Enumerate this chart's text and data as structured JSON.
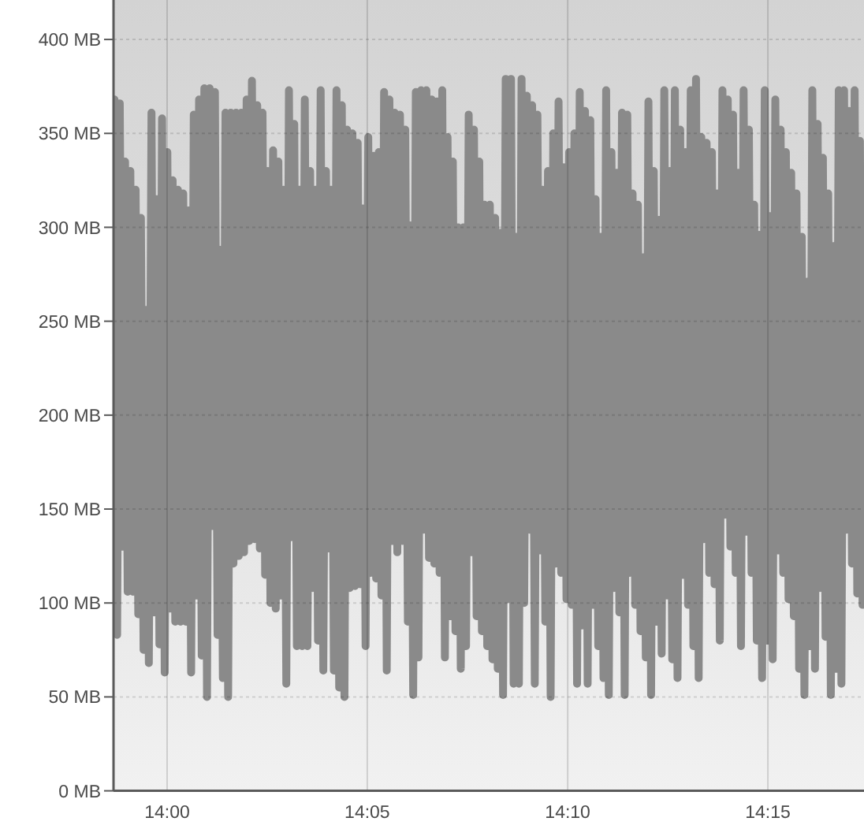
{
  "chart_data": {
    "type": "line",
    "color": "#8a8a8a",
    "line_style": "solid",
    "grid": true,
    "xlim": [
      13.9777,
      14.29
    ],
    "xticks": [
      {
        "value": 14,
        "label": "14:00"
      },
      {
        "value": 14.0833,
        "label": "14:05"
      },
      {
        "value": 14.1667,
        "label": "14:10"
      },
      {
        "value": 14.25,
        "label": "14:15"
      }
    ],
    "ylim": [
      0,
      420
    ],
    "yticks": [
      {
        "value": 0,
        "label": "0 MB"
      },
      {
        "value": 50,
        "label": "50 MB"
      },
      {
        "value": 100,
        "label": "100 MB"
      },
      {
        "value": 150,
        "label": "150 MB"
      },
      {
        "value": 200,
        "label": "200 MB"
      },
      {
        "value": 250,
        "label": "250 MB"
      },
      {
        "value": 300,
        "label": "300 MB"
      },
      {
        "value": 350,
        "label": "350 MB"
      },
      {
        "value": 400,
        "label": "400 MB"
      }
    ],
    "x": [
      13.9781,
      13.9792,
      13.9803,
      13.9814,
      13.9825,
      13.9836,
      13.9847,
      13.9858,
      13.9869,
      13.988,
      13.9891,
      13.9902,
      13.9913,
      13.9924,
      13.9935,
      13.9946,
      13.9957,
      13.9968,
      13.9979,
      13.999,
      14.0001,
      14.0012,
      14.0023,
      14.0034,
      14.0045,
      14.0056,
      14.0067,
      14.0078,
      14.0089,
      14.01,
      14.0111,
      14.0122,
      14.0133,
      14.0144,
      14.0155,
      14.0166,
      14.0177,
      14.0188,
      14.0199,
      14.021,
      14.0221,
      14.0232,
      14.0243,
      14.0254,
      14.0265,
      14.0276,
      14.0287,
      14.0298,
      14.0309,
      14.032,
      14.0331,
      14.0342,
      14.0353,
      14.0364,
      14.0375,
      14.0386,
      14.0397,
      14.0408,
      14.0419,
      14.043,
      14.0441,
      14.0452,
      14.0463,
      14.0474,
      14.0485,
      14.0496,
      14.0507,
      14.0518,
      14.0529,
      14.054,
      14.0551,
      14.0562,
      14.0573,
      14.0584,
      14.0595,
      14.0606,
      14.0617,
      14.0628,
      14.0639,
      14.065,
      14.0661,
      14.0672,
      14.0683,
      14.0694,
      14.0705,
      14.0716,
      14.0727,
      14.0738,
      14.0749,
      14.076,
      14.0771,
      14.0782,
      14.0793,
      14.0804,
      14.0815,
      14.0826,
      14.0837,
      14.0848,
      14.0859,
      14.087,
      14.0881,
      14.0892,
      14.0903,
      14.0914,
      14.0925,
      14.0936,
      14.0947,
      14.0958,
      14.0969,
      14.098,
      14.0991,
      14.1002,
      14.1013,
      14.1024,
      14.1035,
      14.1046,
      14.1057,
      14.1068,
      14.1079,
      14.109,
      14.1101,
      14.1112,
      14.1123,
      14.1134,
      14.1145,
      14.1156,
      14.1167,
      14.1178,
      14.1189,
      14.12,
      14.1211,
      14.1222,
      14.1233,
      14.1244,
      14.1255,
      14.1266,
      14.1277,
      14.1288,
      14.1299,
      14.131,
      14.1321,
      14.1332,
      14.1343,
      14.1354,
      14.1365,
      14.1376,
      14.1387,
      14.1398,
      14.1409,
      14.142,
      14.1431,
      14.1442,
      14.1453,
      14.1464,
      14.1475,
      14.1486,
      14.1497,
      14.1508,
      14.1519,
      14.153,
      14.1541,
      14.1552,
      14.1563,
      14.1574,
      14.1585,
      14.1596,
      14.1607,
      14.1618,
      14.1629,
      14.164,
      14.1651,
      14.1662,
      14.1673,
      14.1684,
      14.1695,
      14.1706,
      14.1717,
      14.1728,
      14.1739,
      14.175,
      14.1761,
      14.1772,
      14.1783,
      14.1794,
      14.1805,
      14.1816,
      14.1827,
      14.1838,
      14.1849,
      14.186,
      14.1871,
      14.1882,
      14.1893,
      14.1904,
      14.1915,
      14.1926,
      14.1937,
      14.1948,
      14.1959,
      14.197,
      14.1981,
      14.1992,
      14.2003,
      14.2014,
      14.2025,
      14.2036,
      14.2047,
      14.2058,
      14.2069,
      14.208,
      14.2091,
      14.2102,
      14.2113,
      14.2124,
      14.2135,
      14.2146,
      14.2157,
      14.2168,
      14.2179,
      14.219,
      14.2201,
      14.2212,
      14.2223,
      14.2234,
      14.2245,
      14.2256,
      14.2267,
      14.2278,
      14.2289,
      14.23,
      14.2311,
      14.2322,
      14.2333,
      14.2344,
      14.2355,
      14.2366,
      14.2377,
      14.2388,
      14.2399,
      14.241,
      14.2421,
      14.2432,
      14.2443,
      14.2454,
      14.2465,
      14.2476,
      14.2487,
      14.2498,
      14.2509,
      14.252,
      14.2531,
      14.2542,
      14.2553,
      14.2564,
      14.2575,
      14.2586,
      14.2597,
      14.2608,
      14.2619,
      14.263,
      14.2641,
      14.2652,
      14.2663,
      14.2674,
      14.2685,
      14.2696,
      14.2707,
      14.2718,
      14.2729,
      14.274,
      14.2751,
      14.2762,
      14.2773,
      14.2784,
      14.2795,
      14.2806,
      14.2817,
      14.2828,
      14.2839,
      14.285,
      14.2861,
      14.2872,
      14.2883,
      14.2894
    ],
    "values": [
      368,
      83,
      366,
      130,
      335,
      106,
      330,
      106,
      320,
      94,
      305,
      75,
      256,
      68,
      361,
      95,
      315,
      78,
      358,
      63,
      340,
      97,
      325,
      90,
      320,
      90,
      318,
      90,
      309,
      63,
      360,
      104,
      368,
      72,
      374,
      50,
      374,
      141,
      372,
      83,
      288,
      60,
      361,
      50,
      361,
      121,
      361,
      125,
      361,
      127,
      368,
      133,
      378,
      134,
      365,
      129,
      361,
      115,
      330,
      100,
      341,
      97,
      335,
      104,
      320,
      57,
      373,
      135,
      355,
      77,
      320,
      77,
      368,
      77,
      330,
      108,
      320,
      80,
      373,
      64,
      330,
      129,
      320,
      64,
      373,
      55,
      365,
      50,
      352,
      108,
      350,
      109,
      345,
      110,
      310,
      77,
      348,
      116,
      338,
      113,
      340,
      104,
      372,
      64,
      368,
      133,
      361,
      127,
      360,
      133,
      352,
      90,
      301,
      51,
      372,
      71,
      373,
      139,
      373,
      124,
      368,
      121,
      367,
      116,
      373,
      71,
      348,
      93,
      335,
      85,
      300,
      65,
      300,
      77,
      360,
      127,
      352,
      93,
      335,
      85,
      312,
      77,
      312,
      70,
      305,
      65,
      297,
      51,
      379,
      102,
      379,
      57,
      295,
      57,
      379,
      100,
      370,
      139,
      365,
      57,
      360,
      128,
      320,
      90,
      330,
      50,
      350,
      121,
      367,
      116,
      332,
      102,
      340,
      99,
      350,
      57,
      372,
      88,
      362,
      57,
      357,
      99,
      315,
      77,
      295,
      60,
      373,
      51,
      340,
      108,
      329,
      95,
      361,
      51,
      360,
      116,
      318,
      99,
      312,
      85,
      284,
      71,
      367,
      51,
      330,
      90,
      304,
      73,
      373,
      104,
      330,
      70,
      373,
      60,
      352,
      115,
      340,
      99,
      373,
      77,
      379,
      60,
      348,
      134,
      345,
      116,
      340,
      110,
      318,
      80,
      373,
      147,
      368,
      130,
      360,
      116,
      329,
      77,
      373,
      138,
      352,
      116,
      312,
      80,
      296,
      60,
      373,
      80,
      306,
      70,
      368,
      128,
      352,
      116,
      340,
      102,
      329,
      93,
      318,
      65,
      295,
      51,
      271,
      77,
      373,
      65,
      355,
      108,
      337,
      82,
      318,
      51,
      290,
      65,
      373,
      57,
      373,
      139,
      362,
      121,
      373,
      105,
      346,
      99
    ]
  }
}
